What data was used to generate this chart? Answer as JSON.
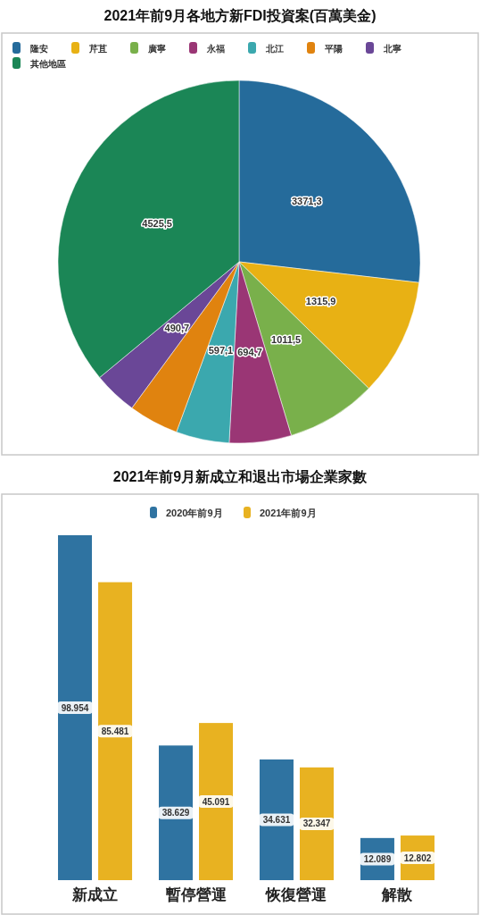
{
  "chart_data": [
    {
      "type": "pie",
      "title": "2021年前9月各地方新FDI投資案(百萬美金)",
      "categories": [
        "隆安",
        "芹苴",
        "廣寧",
        "永福",
        "北江",
        "平陽",
        "北寧",
        "其他地區"
      ],
      "values": [
        3371.3,
        1315.9,
        1011.5,
        694.7,
        597.1,
        560,
        490.7,
        4525.5
      ],
      "colors": [
        "#256b9b",
        "#e8b114",
        "#79b04b",
        "#9a3675",
        "#3ba8ae",
        "#e0830f",
        "#6a4797",
        "#1b8656"
      ],
      "value_labels": [
        "3371,3",
        "1315,9",
        "1011,5",
        "694,7",
        "597,1",
        null,
        "490,7",
        "4525,5"
      ],
      "legend": "top"
    },
    {
      "type": "bar",
      "title": "2021年前9月新成立和退出市場企業家數",
      "categories": [
        "新成立",
        "暫停營運",
        "恢復營運",
        "解散"
      ],
      "series": [
        {
          "name": "2020年前9月",
          "color": "#2f73a1",
          "values": [
            98954,
            38629,
            34631,
            12089
          ],
          "value_labels": [
            "98.954",
            "38.629",
            "34.631",
            "12.089"
          ]
        },
        {
          "name": "2021年前9月",
          "color": "#e8b221",
          "values": [
            85481,
            45091,
            32347,
            12802
          ],
          "value_labels": [
            "85.481",
            "45.091",
            "32.347",
            "12.802"
          ]
        }
      ],
      "legend": "top"
    }
  ]
}
